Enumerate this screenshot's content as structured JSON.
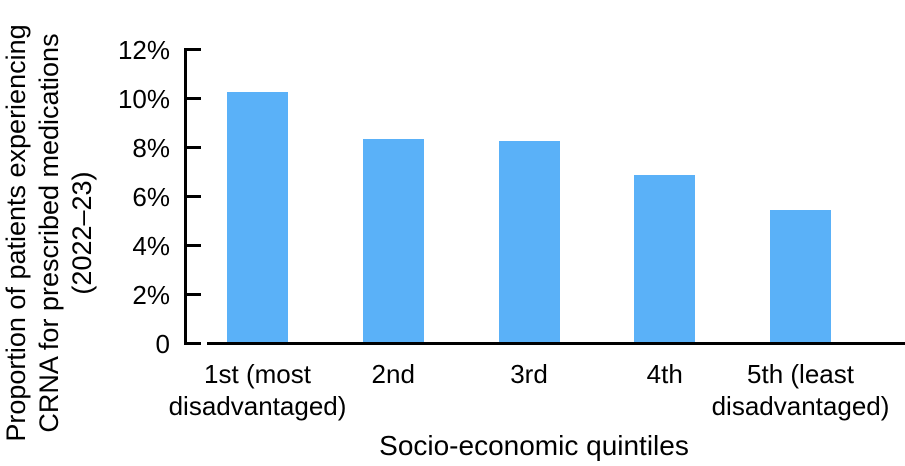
{
  "chart_data": {
    "type": "bar",
    "categories": [
      "1st (most disadvantaged)",
      "2nd",
      "3rd",
      "4th",
      "5th (least disadvantaged)"
    ],
    "values": [
      10.2,
      8.3,
      8.2,
      6.8,
      5.4
    ],
    "title": "",
    "xlabel": "Socio-economic quintiles",
    "ylabel": "Proportion of patients experiencing CRNA for prescribed medications (2022–23)",
    "ylim": [
      0,
      12
    ],
    "yticks": [
      {
        "value": 12,
        "label": "12%"
      },
      {
        "value": 10,
        "label": "10%"
      },
      {
        "value": 8,
        "label": "8%"
      },
      {
        "value": 6,
        "label": "6%"
      },
      {
        "value": 4,
        "label": "4%"
      },
      {
        "value": 2,
        "label": "2%"
      },
      {
        "value": 0,
        "label": "0"
      }
    ],
    "bar_color": "#5AB1F8",
    "axis_color": "#000000",
    "grid": false,
    "legend": false
  },
  "y_axis_title_lines": [
    "Proportion of patients experiencing",
    "CRNA for prescribed medications",
    "(2022–23)"
  ],
  "x_tick_lines": [
    [
      "1st (most",
      "disadvantaged)"
    ],
    [
      "2nd"
    ],
    [
      "3rd"
    ],
    [
      "4th"
    ],
    [
      "5th (least",
      "disadvantaged)"
    ]
  ]
}
